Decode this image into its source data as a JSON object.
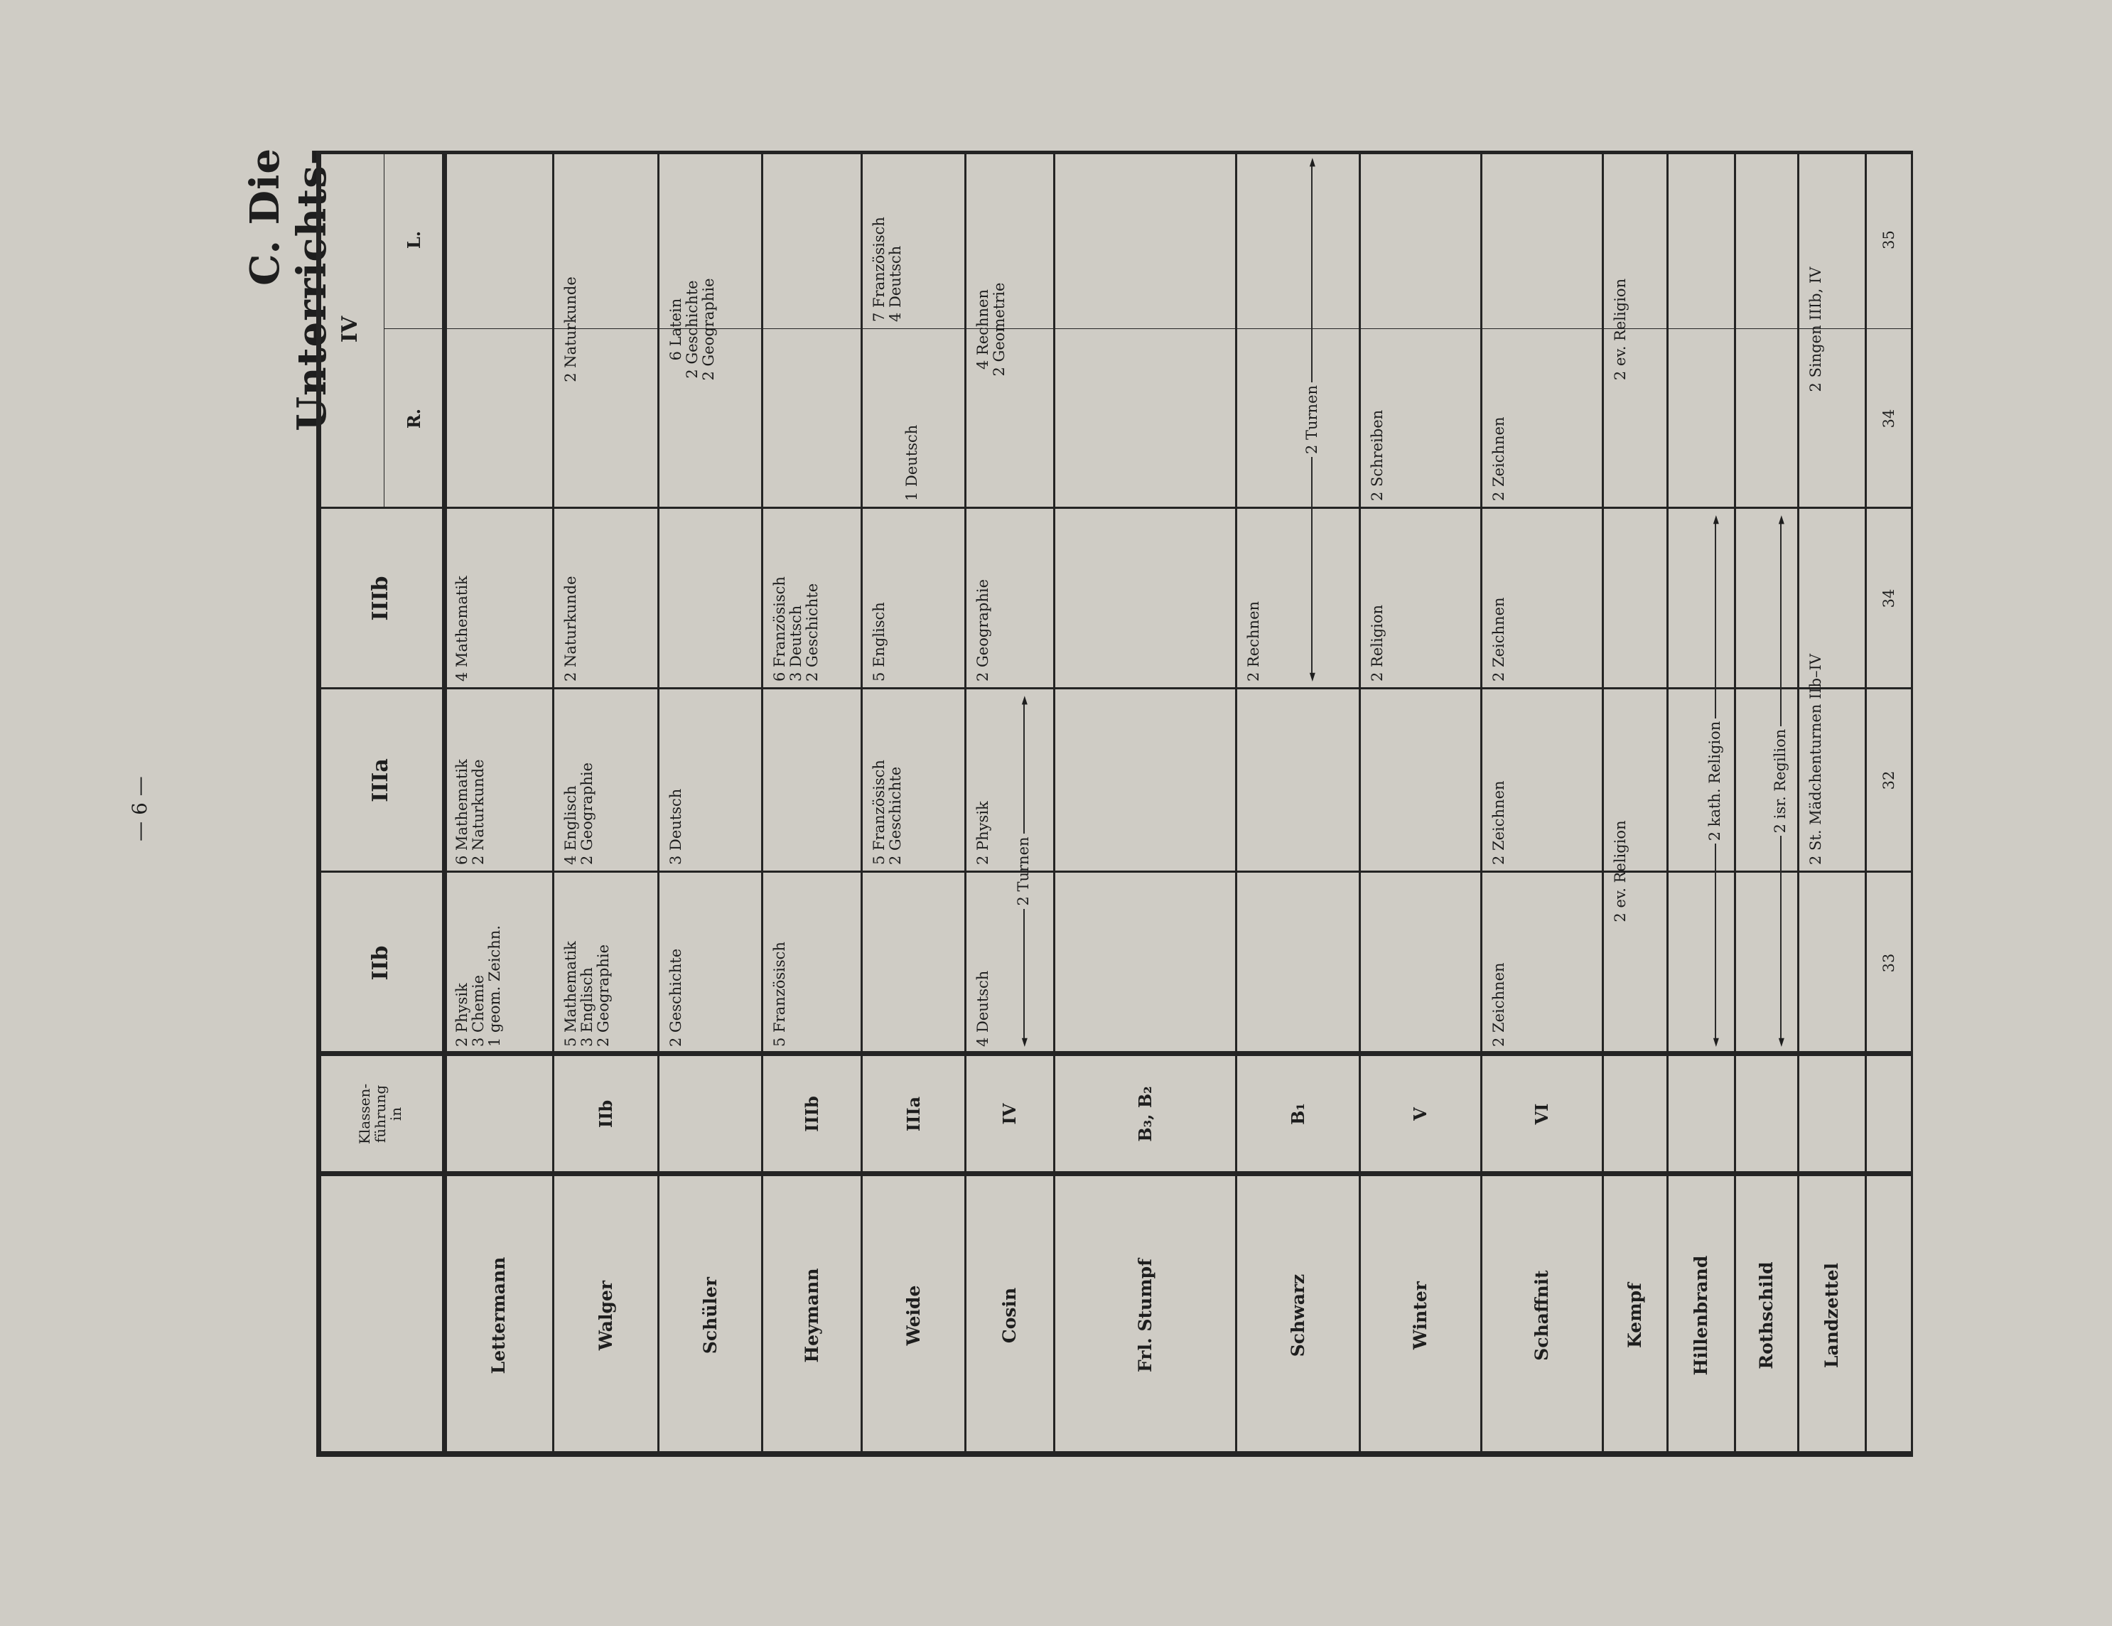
{
  "page": {
    "number": "— 6 —",
    "title": "C. Die Unterrichts-"
  },
  "colors": {
    "paper": "#cfccc5",
    "ink": "#1e1e1e"
  },
  "header": {
    "name": "",
    "class_lead": "Klassen-\nführung\nin",
    "IIb": "IIb",
    "IIIa": "IIIa",
    "IIIb": "IIIb",
    "IV": "IV",
    "IV_R": "R.",
    "IV_L": "L."
  },
  "rows": [
    {
      "name": "Lettermann",
      "class": "",
      "cells": [
        {
          "col": "IIb",
          "text": "2 Physik\n3 Chemie\n1 geom. Zeichn."
        },
        {
          "col": "IIIa",
          "text": "6 Mathematik\n2 Naturkunde"
        },
        {
          "col": "IIIb",
          "text": "4 Mathematik"
        }
      ]
    },
    {
      "name": "Walger",
      "class": "IIb",
      "cells": [
        {
          "col": "IIb",
          "text": "5 Mathematik\n3 Englisch\n2 Geographie"
        },
        {
          "col": "IIIa",
          "text": "4 Englisch\n2 Geographie"
        },
        {
          "col": "IIIb",
          "text": "2 Naturkunde"
        },
        {
          "col": "IV_R",
          "to": "IV_L",
          "text": "2 Naturkunde",
          "centered": true
        }
      ]
    },
    {
      "name": "Schüler",
      "class": "",
      "cells": [
        {
          "col": "IIb",
          "text": "2 Geschichte"
        },
        {
          "col": "IIIa",
          "text": "3 Deutsch"
        },
        {
          "col": "IV_R",
          "to": "IV_L",
          "text": "6 Latein\n2 Geschichte\n2 Geographie",
          "centered": true
        }
      ]
    },
    {
      "name": "Heymann",
      "class": "IIIb",
      "cells": [
        {
          "col": "IIb",
          "text": "5 Französisch"
        },
        {
          "col": "IIIb",
          "text": "6 Französisch\n3 Deutsch\n2 Geschichte"
        }
      ]
    },
    {
      "name": "Weide",
      "class": "IIIa",
      "cells": [
        {
          "col": "IIIa",
          "text": "5 Französisch\n2 Geschichte"
        },
        {
          "col": "IIIb",
          "text": "5 Englisch"
        },
        {
          "col": "IV_L",
          "text": "7 Französisch\n4 Deutsch"
        },
        {
          "col": "IV_R",
          "text": "\n\n1 Deutsch"
        }
      ]
    },
    {
      "name": "Cosin",
      "class": "IV",
      "cells": [
        {
          "col": "IIb",
          "text": "4 Deutsch"
        },
        {
          "col": "IIIa",
          "text": "2 Physik"
        },
        {
          "col": "IIb",
          "to": "IIIa",
          "text": "2 Turnen",
          "arrow": true
        },
        {
          "col": "IIIb",
          "text": "2 Geographie"
        },
        {
          "col": "IV_R",
          "to": "IV_L",
          "text": "4 Rechnen\n2 Geometrie",
          "centered": true
        }
      ]
    },
    {
      "name": "Frl. Stumpf",
      "class": "B₃, B₂",
      "cells": []
    },
    {
      "name": "Schwarz",
      "class": "B₁",
      "cells": [
        {
          "col": "IIIb",
          "text": "2 Rechnen"
        },
        {
          "col": "IIIb",
          "to": "IV_L",
          "text": "2 Turnen",
          "arrow": true
        }
      ]
    },
    {
      "name": "Winter",
      "class": "V",
      "cells": [
        {
          "col": "IIIb",
          "text": "2 Religion"
        },
        {
          "col": "IV_R",
          "text": "2 Schreiben"
        }
      ]
    },
    {
      "name": "Schaffnit",
      "class": "VI",
      "cells": [
        {
          "col": "IIb",
          "text": "2 Zeichnen"
        },
        {
          "col": "IIIa",
          "text": "2 Zeichnen"
        },
        {
          "col": "IIIb",
          "text": "2 Zeichnen"
        },
        {
          "col": "IV_R",
          "text": "2 Zeichnen"
        }
      ]
    },
    {
      "name": "Kempf",
      "class": "",
      "cells": [
        {
          "col": "IIb",
          "to": "IIIa",
          "text": "2 ev. Religion",
          "centered": true
        },
        {
          "col": "IV_R",
          "to": "IV_L",
          "text": "2 ev. Religion",
          "centered": true
        }
      ]
    },
    {
      "name": "Hillenbrand",
      "class": "",
      "cells": [
        {
          "col": "IIb",
          "to": "IIIb",
          "text": "2 kath. Religion",
          "arrow": true
        }
      ]
    },
    {
      "name": "Rothschild",
      "class": "",
      "cells": [
        {
          "col": "IIb",
          "to": "IIIb",
          "text": "2 isr. Regilion",
          "arrow": true
        }
      ]
    },
    {
      "name": "Landzettel",
      "class": "",
      "cells": [
        {
          "col": "IIIa",
          "to": "IIIb",
          "text": "2 St. Mädchenturnen IIb–IV"
        },
        {
          "col": "IV_R",
          "to": "IV_L",
          "text": "2 Singen IIIb, IV",
          "centered": true
        }
      ]
    }
  ],
  "totals": {
    "IIb": "33",
    "IIIa": "32",
    "IIIb": "34",
    "IV_R": "34",
    "IV_L": "35"
  }
}
